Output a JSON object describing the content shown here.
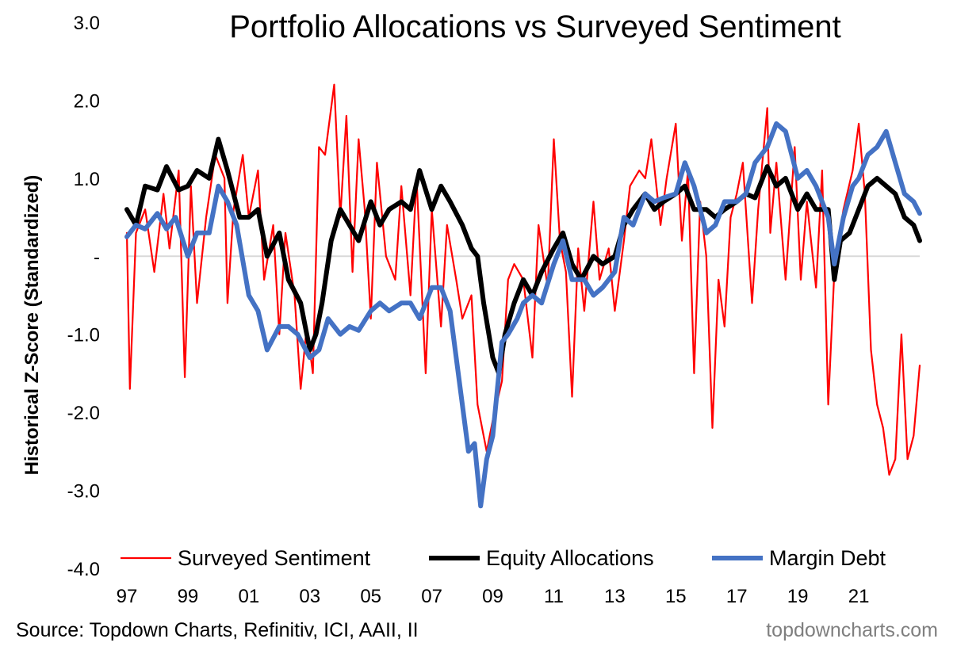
{
  "chart_data": {
    "type": "line",
    "title": "Portfolio Allocations vs Surveyed Sentiment",
    "ylabel": "Historical Z-Score (Standardized)",
    "xlabel": "",
    "ylim": [
      -4.0,
      3.0
    ],
    "xlim": [
      1997,
      2023
    ],
    "yticks": [
      {
        "value": 3.0,
        "label": "3.0"
      },
      {
        "value": 2.0,
        "label": "2.0"
      },
      {
        "value": 1.0,
        "label": "1.0"
      },
      {
        "value": 0.0,
        "label": "-"
      },
      {
        "value": -1.0,
        "label": "-1.0"
      },
      {
        "value": -2.0,
        "label": "-2.0"
      },
      {
        "value": -3.0,
        "label": "-3.0"
      },
      {
        "value": -4.0,
        "label": "-4.0"
      }
    ],
    "xticks": [
      {
        "value": 1997,
        "label": "97"
      },
      {
        "value": 1999,
        "label": "99"
      },
      {
        "value": 2001,
        "label": "01"
      },
      {
        "value": 2003,
        "label": "03"
      },
      {
        "value": 2005,
        "label": "05"
      },
      {
        "value": 2007,
        "label": "07"
      },
      {
        "value": 2009,
        "label": "09"
      },
      {
        "value": 2011,
        "label": "11"
      },
      {
        "value": 2013,
        "label": "13"
      },
      {
        "value": 2015,
        "label": "15"
      },
      {
        "value": 2017,
        "label": "17"
      },
      {
        "value": 2019,
        "label": "19"
      },
      {
        "value": 2021,
        "label": "21"
      }
    ],
    "grid": false,
    "zero_line": true,
    "legend_position": "bottom",
    "series": [
      {
        "name": "Surveyed Sentiment",
        "color": "#ff0000",
        "style": "thin",
        "x": [
          1997.0,
          1997.1,
          1997.3,
          1997.6,
          1997.9,
          1998.2,
          1998.4,
          1998.7,
          1998.9,
          1999.1,
          1999.3,
          1999.6,
          1999.9,
          2000.2,
          2000.3,
          2000.5,
          2000.8,
          2001.0,
          2001.3,
          2001.5,
          2001.8,
          2002.0,
          2002.2,
          2002.5,
          2002.7,
          2002.9,
          2003.1,
          2003.3,
          2003.5,
          2003.6,
          2003.8,
          2004.0,
          2004.2,
          2004.4,
          2004.6,
          2004.8,
          2005.0,
          2005.2,
          2005.5,
          2005.8,
          2006.0,
          2006.3,
          2006.5,
          2006.8,
          2007.0,
          2007.3,
          2007.5,
          2007.8,
          2008.0,
          2008.3,
          2008.5,
          2008.8,
          2009.0,
          2009.3,
          2009.5,
          2009.7,
          2010.0,
          2010.3,
          2010.5,
          2010.8,
          2011.0,
          2011.2,
          2011.4,
          2011.6,
          2011.8,
          2012.0,
          2012.3,
          2012.5,
          2012.8,
          2013.0,
          2013.3,
          2013.5,
          2013.8,
          2014.0,
          2014.2,
          2014.5,
          2014.7,
          2015.0,
          2015.2,
          2015.4,
          2015.6,
          2015.8,
          2016.0,
          2016.2,
          2016.4,
          2016.6,
          2016.8,
          2017.0,
          2017.2,
          2017.5,
          2017.7,
          2018.0,
          2018.1,
          2018.3,
          2018.6,
          2018.9,
          2019.1,
          2019.3,
          2019.6,
          2019.8,
          2020.0,
          2020.2,
          2020.5,
          2020.8,
          2021.0,
          2021.2,
          2021.4,
          2021.6,
          2021.8,
          2022.0,
          2022.2,
          2022.4,
          2022.6,
          2022.8,
          2023.0
        ],
        "values": [
          0.3,
          -1.7,
          0.3,
          0.6,
          -0.2,
          0.8,
          0.1,
          1.1,
          -1.55,
          0.9,
          -0.6,
          0.5,
          1.3,
          1.0,
          -0.6,
          0.6,
          1.3,
          0.5,
          1.1,
          -0.3,
          0.4,
          -1.0,
          0.3,
          -0.5,
          -1.7,
          -0.9,
          -1.5,
          1.4,
          1.3,
          1.6,
          2.2,
          0.5,
          1.8,
          -0.2,
          1.5,
          0.6,
          -0.8,
          1.2,
          0.0,
          -0.3,
          0.9,
          -0.5,
          1.0,
          -1.5,
          0.6,
          -0.9,
          0.4,
          -0.3,
          -0.8,
          -0.5,
          -1.9,
          -2.5,
          -2.1,
          -1.6,
          -0.3,
          -0.1,
          -0.3,
          -1.3,
          0.4,
          -0.4,
          1.5,
          0.2,
          -0.2,
          -1.8,
          0.1,
          -0.7,
          0.7,
          -0.3,
          0.1,
          -0.7,
          0.2,
          0.9,
          1.1,
          1.0,
          1.5,
          0.4,
          1.0,
          1.7,
          0.2,
          1.1,
          -1.5,
          0.7,
          0.0,
          -2.2,
          -0.3,
          -0.9,
          0.5,
          0.8,
          1.2,
          -0.6,
          0.6,
          1.9,
          0.3,
          1.2,
          -0.3,
          1.4,
          -0.3,
          0.7,
          -0.4,
          1.1,
          -1.9,
          -0.2,
          0.6,
          1.1,
          1.7,
          0.8,
          -1.2,
          -1.9,
          -2.2,
          -2.8,
          -2.6,
          -1.0,
          -2.6,
          -2.3,
          -1.4
        ]
      },
      {
        "name": "Equity Allocations",
        "color": "#000000",
        "style": "thick",
        "x": [
          1997.0,
          1997.3,
          1997.6,
          1998.0,
          1998.3,
          1998.7,
          1999.0,
          1999.3,
          1999.7,
          2000.0,
          2000.3,
          2000.7,
          2001.0,
          2001.3,
          2001.6,
          2002.0,
          2002.3,
          2002.7,
          2003.0,
          2003.2,
          2003.4,
          2003.7,
          2004.0,
          2004.3,
          2004.6,
          2005.0,
          2005.3,
          2005.6,
          2006.0,
          2006.3,
          2006.6,
          2007.0,
          2007.3,
          2007.6,
          2008.0,
          2008.3,
          2008.5,
          2008.7,
          2009.0,
          2009.2,
          2009.4,
          2009.7,
          2010.0,
          2010.3,
          2010.6,
          2011.0,
          2011.3,
          2011.6,
          2011.9,
          2012.3,
          2012.6,
          2013.0,
          2013.3,
          2013.6,
          2014.0,
          2014.3,
          2014.6,
          2015.0,
          2015.3,
          2015.6,
          2016.0,
          2016.3,
          2016.6,
          2017.0,
          2017.3,
          2017.6,
          2018.0,
          2018.3,
          2018.6,
          2019.0,
          2019.3,
          2019.6,
          2020.0,
          2020.2,
          2020.4,
          2020.7,
          2021.0,
          2021.3,
          2021.6,
          2021.9,
          2022.2,
          2022.5,
          2022.8,
          2023.0
        ],
        "values": [
          0.6,
          0.4,
          0.9,
          0.85,
          1.15,
          0.85,
          0.9,
          1.1,
          1.0,
          1.5,
          1.1,
          0.5,
          0.5,
          0.6,
          0.0,
          0.3,
          -0.3,
          -0.6,
          -1.2,
          -1.0,
          -0.6,
          0.2,
          0.6,
          0.4,
          0.2,
          0.7,
          0.4,
          0.6,
          0.7,
          0.6,
          1.1,
          0.6,
          0.9,
          0.7,
          0.4,
          0.1,
          0.0,
          -0.6,
          -1.3,
          -1.5,
          -1.0,
          -0.6,
          -0.3,
          -0.5,
          -0.2,
          0.1,
          0.3,
          -0.1,
          -0.3,
          0.0,
          -0.1,
          0.0,
          0.4,
          0.6,
          0.8,
          0.6,
          0.7,
          0.8,
          0.9,
          0.6,
          0.6,
          0.5,
          0.6,
          0.7,
          0.8,
          0.75,
          1.15,
          0.9,
          1.0,
          0.6,
          0.8,
          0.6,
          0.6,
          -0.3,
          0.2,
          0.3,
          0.6,
          0.9,
          1.0,
          0.9,
          0.8,
          0.5,
          0.4,
          0.2
        ]
      },
      {
        "name": "Margin Debt",
        "color": "#4472c4",
        "style": "thick",
        "x": [
          1997.0,
          1997.3,
          1997.6,
          1998.0,
          1998.3,
          1998.6,
          1999.0,
          1999.3,
          1999.7,
          2000.0,
          2000.3,
          2000.6,
          2001.0,
          2001.3,
          2001.6,
          2002.0,
          2002.3,
          2002.6,
          2003.0,
          2003.3,
          2003.6,
          2004.0,
          2004.3,
          2004.6,
          2005.0,
          2005.3,
          2005.6,
          2006.0,
          2006.3,
          2006.6,
          2007.0,
          2007.3,
          2007.6,
          2008.0,
          2008.2,
          2008.4,
          2008.6,
          2008.8,
          2009.0,
          2009.3,
          2009.5,
          2009.8,
          2010.0,
          2010.3,
          2010.6,
          2011.0,
          2011.3,
          2011.6,
          2012.0,
          2012.3,
          2012.6,
          2013.0,
          2013.3,
          2013.6,
          2014.0,
          2014.3,
          2014.6,
          2015.0,
          2015.3,
          2015.6,
          2016.0,
          2016.3,
          2016.6,
          2017.0,
          2017.3,
          2017.6,
          2018.0,
          2018.3,
          2018.6,
          2019.0,
          2019.3,
          2019.6,
          2020.0,
          2020.2,
          2020.5,
          2020.8,
          2021.0,
          2021.3,
          2021.6,
          2021.9,
          2022.2,
          2022.5,
          2022.8,
          2023.0
        ],
        "values": [
          0.25,
          0.4,
          0.35,
          0.55,
          0.35,
          0.5,
          0.0,
          0.3,
          0.3,
          0.9,
          0.7,
          0.4,
          -0.5,
          -0.7,
          -1.2,
          -0.9,
          -0.9,
          -1.0,
          -1.3,
          -1.2,
          -0.8,
          -1.0,
          -0.9,
          -0.95,
          -0.7,
          -0.6,
          -0.7,
          -0.6,
          -0.6,
          -0.8,
          -0.4,
          -0.4,
          -0.7,
          -1.9,
          -2.5,
          -2.4,
          -3.2,
          -2.6,
          -2.3,
          -1.1,
          -1.0,
          -0.8,
          -0.6,
          -0.5,
          -0.6,
          -0.1,
          0.2,
          -0.3,
          -0.3,
          -0.5,
          -0.4,
          -0.2,
          0.5,
          0.4,
          0.8,
          0.7,
          0.75,
          0.8,
          1.2,
          0.9,
          0.3,
          0.4,
          0.7,
          0.7,
          0.8,
          1.2,
          1.4,
          1.7,
          1.6,
          1.0,
          1.1,
          0.9,
          0.5,
          -0.1,
          0.5,
          0.9,
          1.0,
          1.3,
          1.4,
          1.6,
          1.2,
          0.8,
          0.7,
          0.55
        ]
      }
    ]
  },
  "footer": {
    "source": "Source: Topdown Charts, Refinitiv, ICI, AAII, II",
    "brand": "topdowncharts.com"
  }
}
